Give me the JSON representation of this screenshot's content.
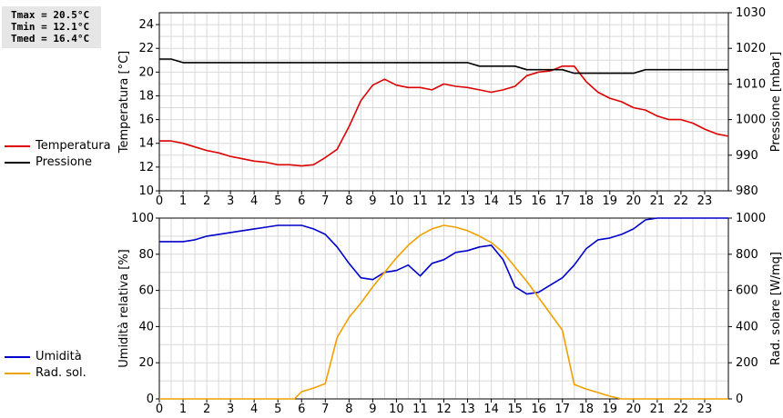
{
  "stats": {
    "tmax": "Tmax = 20.5°C",
    "tmin": "Tmin = 12.1°C",
    "tmed": "Tmed = 16.4°C"
  },
  "legend_top": [
    {
      "label": "Temperatura",
      "color": "#dd0000"
    },
    {
      "label": "Pressione",
      "color": "#000000"
    }
  ],
  "legend_bottom": [
    {
      "label": "Umidità",
      "color": "#0000cc"
    },
    {
      "label": "Rad. sol.",
      "color": "#f0a000"
    }
  ],
  "chart_data": [
    {
      "type": "line",
      "grid": true,
      "xlim": [
        0,
        24
      ],
      "x_ticks": [
        0,
        1,
        2,
        3,
        4,
        5,
        6,
        7,
        8,
        9,
        10,
        11,
        12,
        13,
        14,
        15,
        16,
        17,
        18,
        19,
        20,
        21,
        22,
        23
      ],
      "left_axis": {
        "label": "Temperatura [°C]",
        "lim": [
          10,
          25
        ],
        "ticks": [
          10,
          12,
          14,
          16,
          18,
          20,
          22,
          24
        ]
      },
      "right_axis": {
        "label": "Pressione [mbar]",
        "lim": [
          980,
          1030
        ],
        "ticks": [
          980,
          990,
          1000,
          1010,
          1020,
          1030
        ]
      },
      "series": [
        {
          "name": "Temperatura",
          "axis": "left",
          "color": "#dd0000",
          "points": [
            [
              0,
              14.2
            ],
            [
              0.5,
              14.2
            ],
            [
              1,
              14.0
            ],
            [
              1.5,
              13.7
            ],
            [
              2,
              13.4
            ],
            [
              2.5,
              13.2
            ],
            [
              3,
              12.9
            ],
            [
              3.5,
              12.7
            ],
            [
              4,
              12.5
            ],
            [
              4.5,
              12.4
            ],
            [
              5,
              12.2
            ],
            [
              5.5,
              12.2
            ],
            [
              6,
              12.1
            ],
            [
              6.5,
              12.2
            ],
            [
              7,
              12.8
            ],
            [
              7.5,
              13.5
            ],
            [
              8,
              15.4
            ],
            [
              8.5,
              17.6
            ],
            [
              9,
              18.9
            ],
            [
              9.5,
              19.4
            ],
            [
              10,
              18.9
            ],
            [
              10.5,
              18.7
            ],
            [
              11,
              18.7
            ],
            [
              11.5,
              18.5
            ],
            [
              12,
              19.0
            ],
            [
              12.5,
              18.8
            ],
            [
              13,
              18.7
            ],
            [
              13.5,
              18.5
            ],
            [
              14,
              18.3
            ],
            [
              14.5,
              18.5
            ],
            [
              15,
              18.8
            ],
            [
              15.5,
              19.7
            ],
            [
              16,
              20.0
            ],
            [
              16.5,
              20.1
            ],
            [
              17,
              20.5
            ],
            [
              17.5,
              20.5
            ],
            [
              18,
              19.2
            ],
            [
              18.5,
              18.3
            ],
            [
              19,
              17.8
            ],
            [
              19.5,
              17.5
            ],
            [
              20,
              17.0
            ],
            [
              20.5,
              16.8
            ],
            [
              21,
              16.3
            ],
            [
              21.5,
              16.0
            ],
            [
              22,
              16.0
            ],
            [
              22.5,
              15.7
            ],
            [
              23,
              15.2
            ],
            [
              23.5,
              14.8
            ],
            [
              24,
              14.6
            ]
          ]
        },
        {
          "name": "Pressione",
          "axis": "right",
          "color": "#000000",
          "points": [
            [
              0,
              1017
            ],
            [
              0.5,
              1017
            ],
            [
              1,
              1016
            ],
            [
              2,
              1016
            ],
            [
              3,
              1016
            ],
            [
              4,
              1016
            ],
            [
              5,
              1016
            ],
            [
              6,
              1016
            ],
            [
              7,
              1016
            ],
            [
              8,
              1016
            ],
            [
              9,
              1016
            ],
            [
              10,
              1016
            ],
            [
              11,
              1016
            ],
            [
              12,
              1016
            ],
            [
              13,
              1016
            ],
            [
              13.5,
              1015
            ],
            [
              14,
              1015
            ],
            [
              15,
              1015
            ],
            [
              15.5,
              1014
            ],
            [
              16,
              1014
            ],
            [
              17,
              1014
            ],
            [
              17.5,
              1013
            ],
            [
              18,
              1013
            ],
            [
              19,
              1013
            ],
            [
              20,
              1013
            ],
            [
              20.5,
              1014
            ],
            [
              21,
              1014
            ],
            [
              22,
              1014
            ],
            [
              23,
              1014
            ],
            [
              24,
              1014
            ]
          ]
        }
      ]
    },
    {
      "type": "line",
      "grid": true,
      "xlim": [
        0,
        24
      ],
      "x_ticks": [
        0,
        1,
        2,
        3,
        4,
        5,
        6,
        7,
        8,
        9,
        10,
        11,
        12,
        13,
        14,
        15,
        16,
        17,
        18,
        19,
        20,
        21,
        22,
        23
      ],
      "left_axis": {
        "label": "Umidità relativa [%]",
        "lim": [
          0,
          100
        ],
        "ticks": [
          0,
          20,
          40,
          60,
          80,
          100
        ]
      },
      "right_axis": {
        "label": "Rad. solare [W/mq]",
        "lim": [
          0,
          1000
        ],
        "ticks": [
          0,
          200,
          400,
          600,
          800,
          1000
        ]
      },
      "series": [
        {
          "name": "Umidità",
          "axis": "left",
          "color": "#0000cc",
          "points": [
            [
              0,
              87
            ],
            [
              0.5,
              87
            ],
            [
              1,
              87
            ],
            [
              1.5,
              88
            ],
            [
              2,
              90
            ],
            [
              2.5,
              91
            ],
            [
              3,
              92
            ],
            [
              3.5,
              93
            ],
            [
              4,
              94
            ],
            [
              4.5,
              95
            ],
            [
              5,
              96
            ],
            [
              5.5,
              96
            ],
            [
              6,
              96
            ],
            [
              6.5,
              94
            ],
            [
              7,
              91
            ],
            [
              7.5,
              84
            ],
            [
              8,
              75
            ],
            [
              8.5,
              67
            ],
            [
              9,
              66
            ],
            [
              9.5,
              70
            ],
            [
              10,
              71
            ],
            [
              10.5,
              74
            ],
            [
              11,
              68
            ],
            [
              11.5,
              75
            ],
            [
              12,
              77
            ],
            [
              12.5,
              81
            ],
            [
              13,
              82
            ],
            [
              13.5,
              84
            ],
            [
              14,
              85
            ],
            [
              14.5,
              77
            ],
            [
              15,
              62
            ],
            [
              15.5,
              58
            ],
            [
              16,
              59
            ],
            [
              16.5,
              63
            ],
            [
              17,
              67
            ],
            [
              17.5,
              74
            ],
            [
              18,
              83
            ],
            [
              18.5,
              88
            ],
            [
              19,
              89
            ],
            [
              19.5,
              91
            ],
            [
              20,
              94
            ],
            [
              20.5,
              99
            ],
            [
              21,
              100
            ],
            [
              22,
              100
            ],
            [
              23,
              100
            ],
            [
              24,
              100
            ]
          ]
        },
        {
          "name": "Rad. sol.",
          "axis": "right",
          "color": "#f0a000",
          "points": [
            [
              0,
              0
            ],
            [
              1,
              0
            ],
            [
              2,
              0
            ],
            [
              3,
              0
            ],
            [
              4,
              0
            ],
            [
              5,
              0
            ],
            [
              5.7,
              0
            ],
            [
              6,
              40
            ],
            [
              6.5,
              60
            ],
            [
              7,
              85
            ],
            [
              7.5,
              340
            ],
            [
              8,
              450
            ],
            [
              8.5,
              530
            ],
            [
              9,
              620
            ],
            [
              9.5,
              700
            ],
            [
              10,
              780
            ],
            [
              10.5,
              850
            ],
            [
              11,
              905
            ],
            [
              11.5,
              940
            ],
            [
              12,
              960
            ],
            [
              12.5,
              950
            ],
            [
              13,
              930
            ],
            [
              13.5,
              900
            ],
            [
              14,
              865
            ],
            [
              14.5,
              810
            ],
            [
              15,
              730
            ],
            [
              15.5,
              650
            ],
            [
              16,
              560
            ],
            [
              16.5,
              470
            ],
            [
              17,
              380
            ],
            [
              17.5,
              80
            ],
            [
              18,
              55
            ],
            [
              18.5,
              35
            ],
            [
              19,
              15
            ],
            [
              19.5,
              0
            ],
            [
              20,
              0
            ],
            [
              21,
              0
            ],
            [
              22,
              0
            ],
            [
              23,
              0
            ],
            [
              24,
              0
            ]
          ]
        }
      ]
    }
  ]
}
